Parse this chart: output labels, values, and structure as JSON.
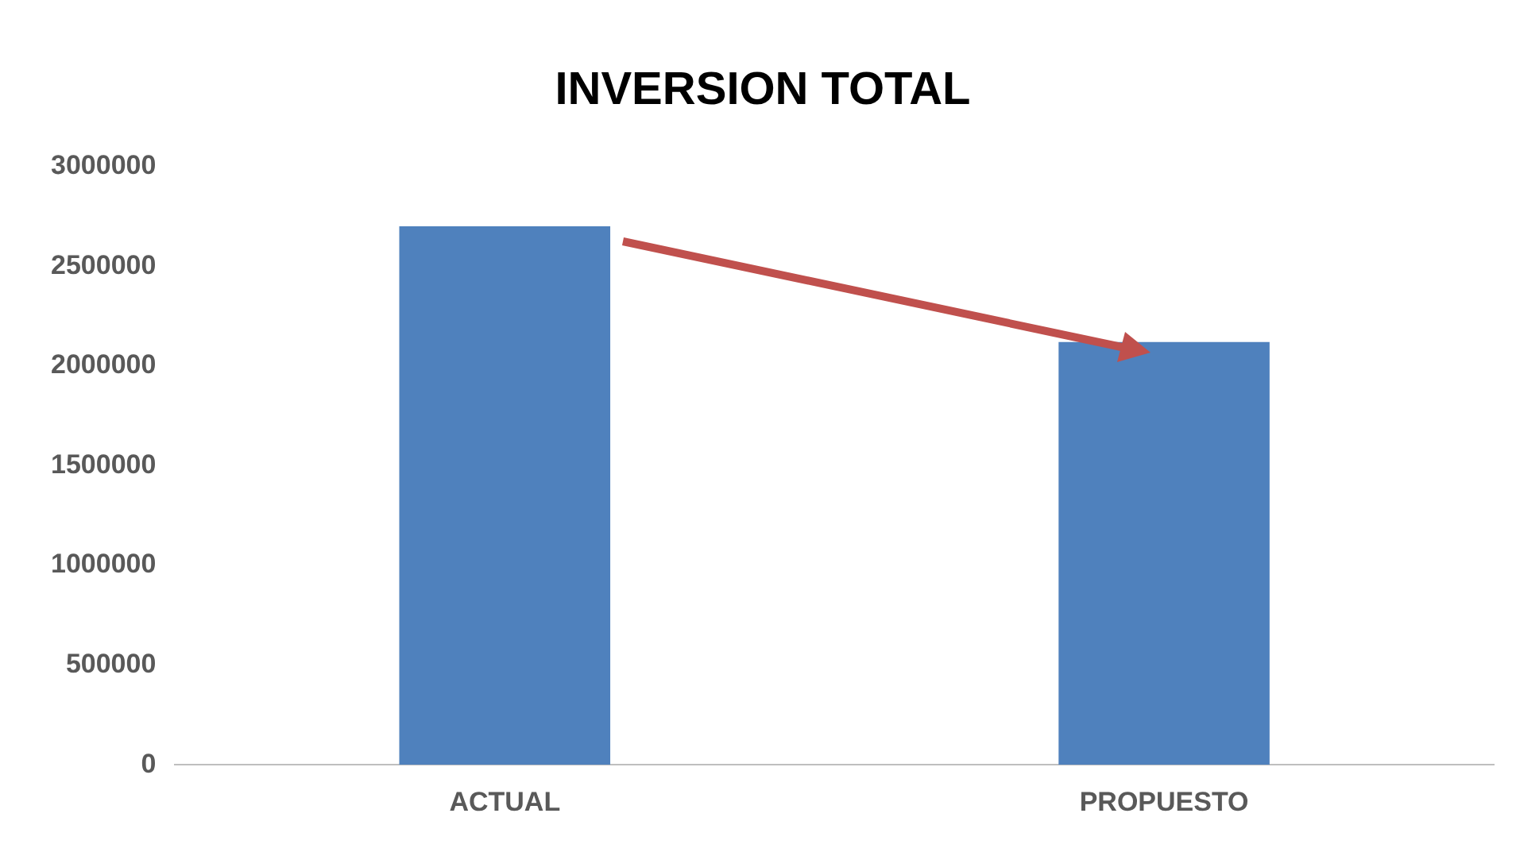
{
  "chart_data": {
    "type": "bar",
    "title": "INVERSION TOTAL",
    "categories": [
      "ACTUAL",
      "PROPUESTO"
    ],
    "values": [
      2700000,
      2120000
    ],
    "color": "#4f81bd",
    "ylim": [
      0,
      3000000
    ],
    "yticks": [
      0,
      500000,
      1000000,
      1500000,
      2000000,
      2500000,
      3000000
    ],
    "grid": false,
    "legend": false
  }
}
